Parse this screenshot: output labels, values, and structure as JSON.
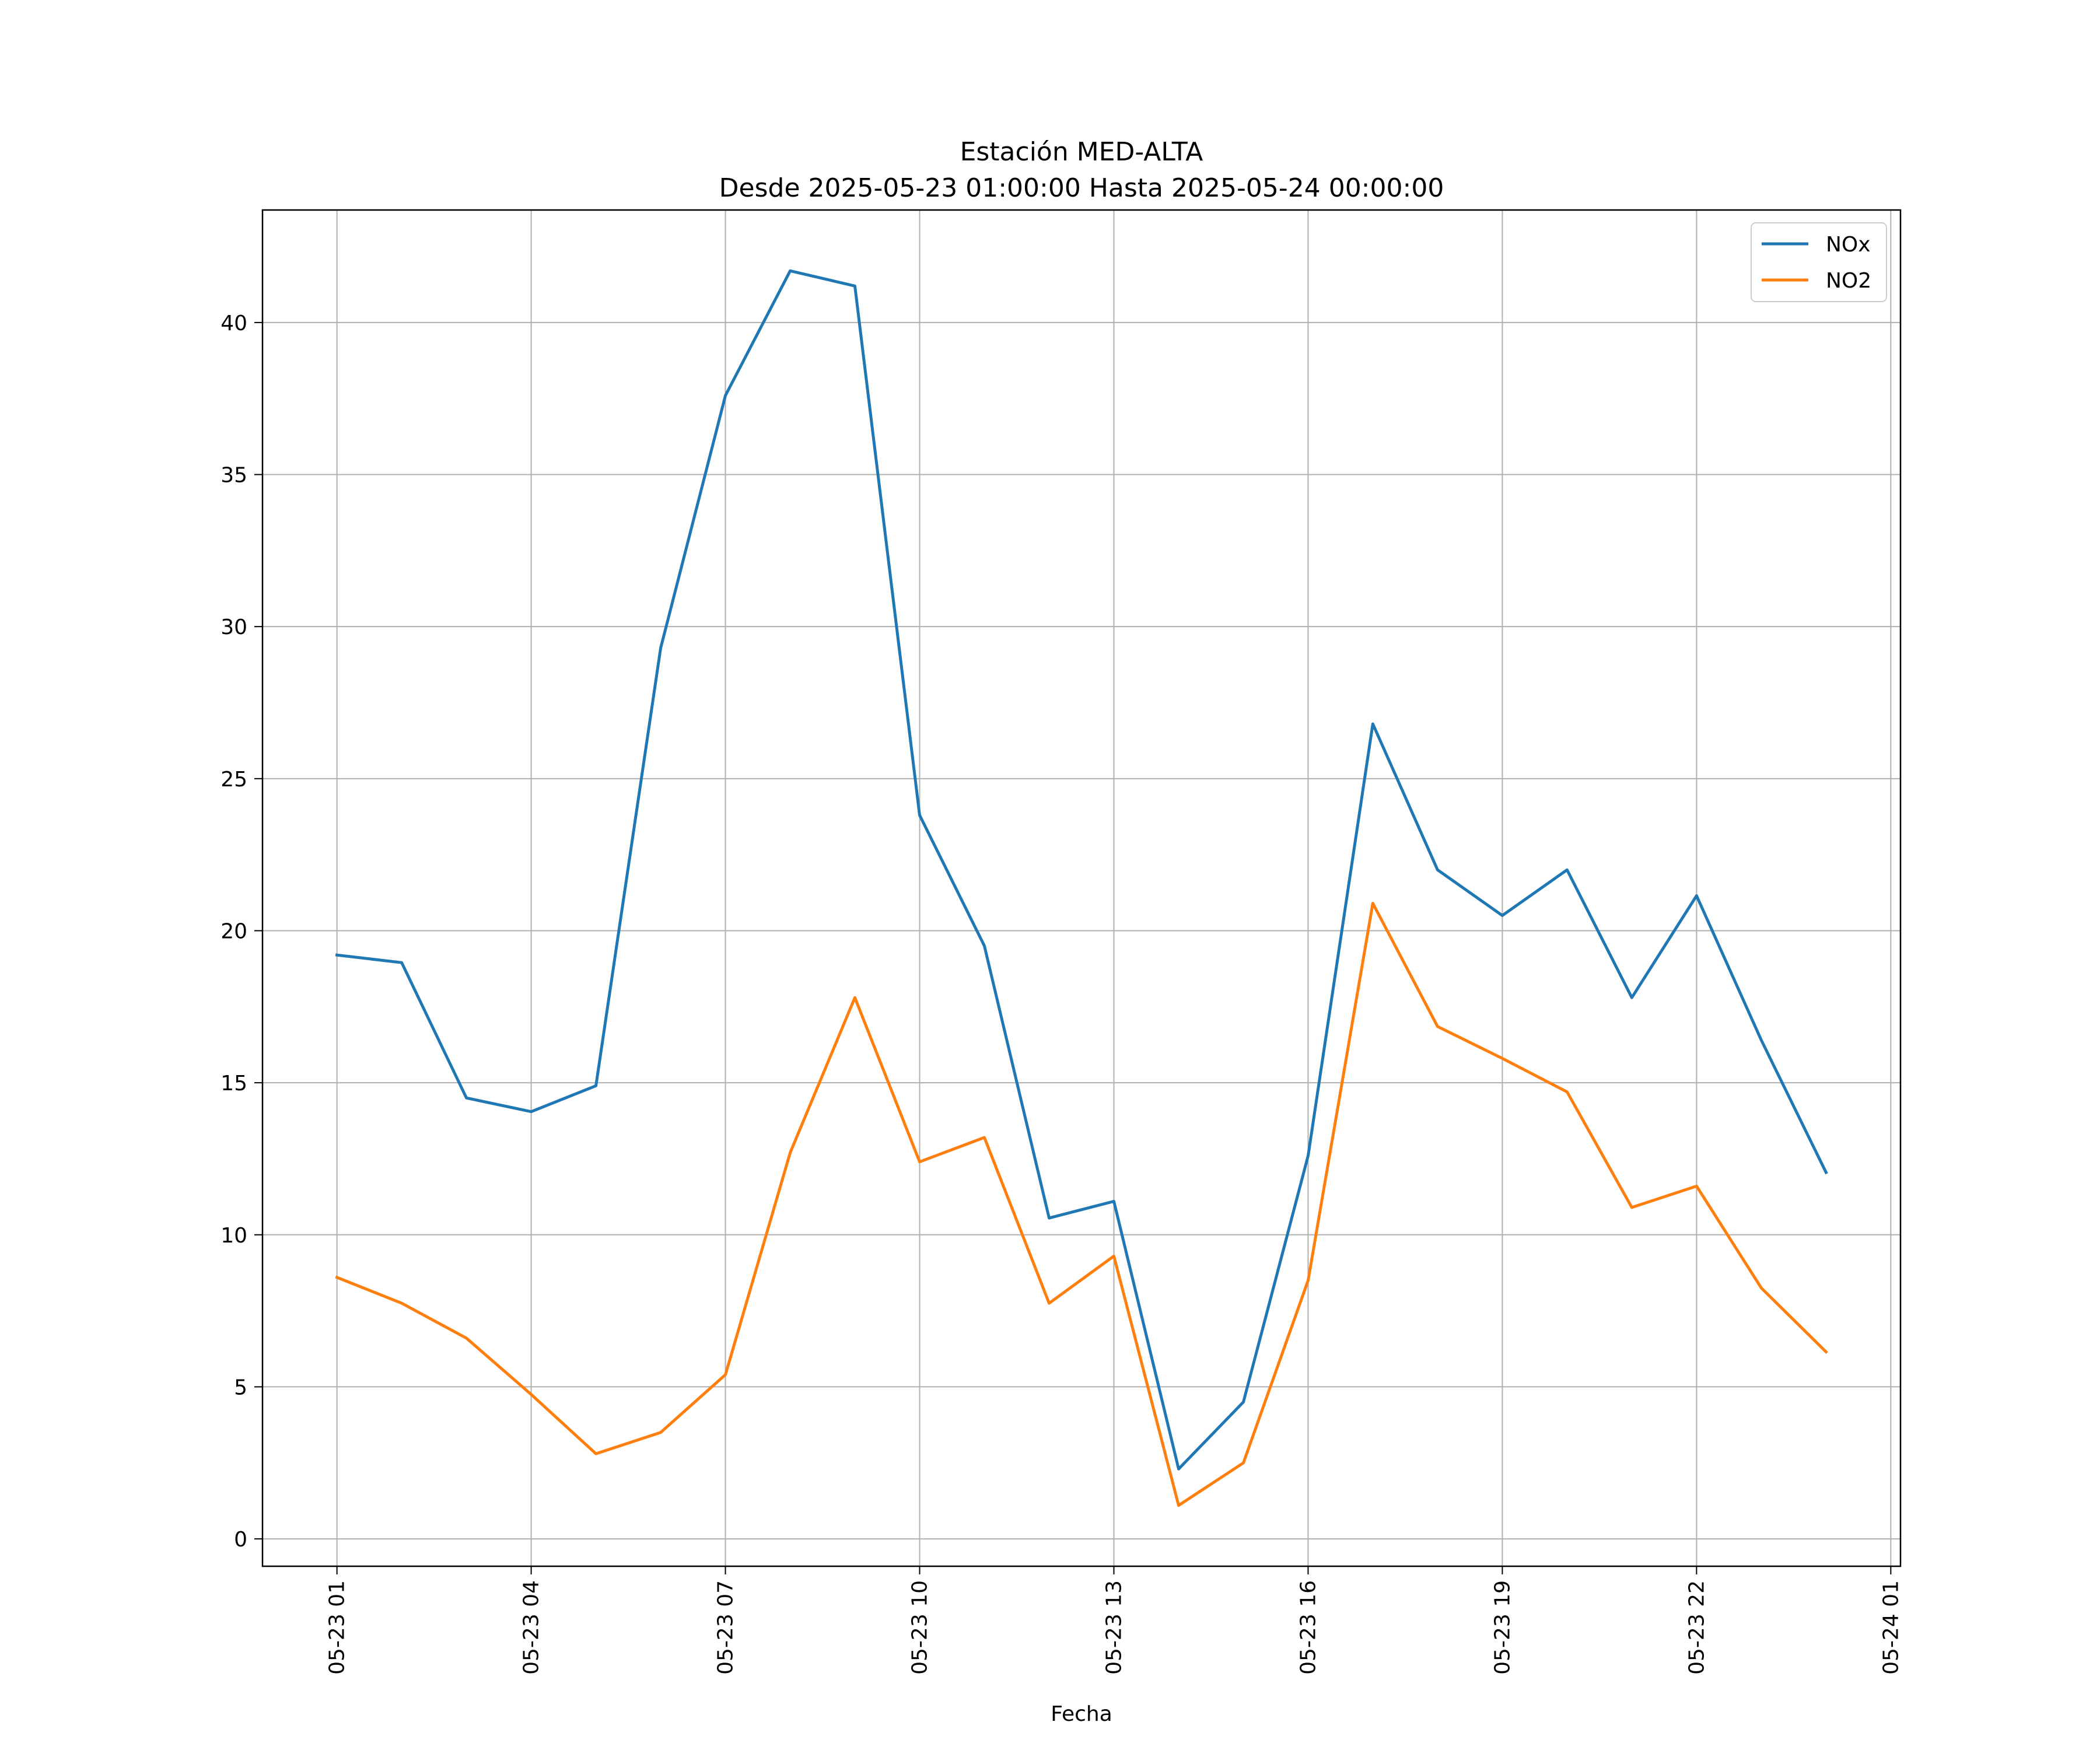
{
  "chart_data": {
    "type": "line",
    "title": "Estación MED-ALTA",
    "subtitle": "Desde 2025-05-23 01:00:00 Hasta 2025-05-24 00:00:00",
    "xlabel": "Fecha",
    "ylabel": "",
    "x": [
      "05-23 01",
      "05-23 02",
      "05-23 03",
      "05-23 04",
      "05-23 05",
      "05-23 06",
      "05-23 07",
      "05-23 08",
      "05-23 09",
      "05-23 10",
      "05-23 11",
      "05-23 12",
      "05-23 13",
      "05-23 14",
      "05-23 15",
      "05-23 16",
      "05-23 17",
      "05-23 18",
      "05-23 19",
      "05-23 20",
      "05-23 21",
      "05-23 22",
      "05-23 23",
      "05-24 00"
    ],
    "x_hours": [
      1,
      2,
      3,
      4,
      5,
      6,
      7,
      8,
      9,
      10,
      11,
      12,
      13,
      14,
      15,
      16,
      17,
      18,
      19,
      20,
      21,
      22,
      23,
      24
    ],
    "xlim_hours": [
      -0.15,
      25.15
    ],
    "xticks": {
      "labels": [
        "05-23 01",
        "05-23 04",
        "05-23 07",
        "05-23 10",
        "05-23 13",
        "05-23 16",
        "05-23 19",
        "05-23 22",
        "05-24 01"
      ],
      "hours": [
        1,
        4,
        7,
        10,
        13,
        16,
        19,
        22,
        25
      ]
    },
    "ylim": [
      -0.9,
      43.7
    ],
    "yticks": [
      0,
      5,
      10,
      15,
      20,
      25,
      30,
      35,
      40
    ],
    "grid": true,
    "legend": "top-right",
    "series": [
      {
        "name": "NOx",
        "color": "#1f77b4",
        "values": [
          19.2,
          18.95,
          14.5,
          14.05,
          14.9,
          29.3,
          37.6,
          41.7,
          41.2,
          23.8,
          19.5,
          10.55,
          11.1,
          2.3,
          4.5,
          12.6,
          26.8,
          22.0,
          20.5,
          22.0,
          17.8,
          21.15,
          16.4,
          12.05
        ]
      },
      {
        "name": "NO2",
        "color": "#ff7f0e",
        "values": [
          8.6,
          7.75,
          6.6,
          4.75,
          2.8,
          3.5,
          5.4,
          12.7,
          17.8,
          12.4,
          13.2,
          7.75,
          9.3,
          1.1,
          2.5,
          8.5,
          20.9,
          16.85,
          15.8,
          14.7,
          10.9,
          11.6,
          8.25,
          6.15
        ]
      }
    ]
  }
}
